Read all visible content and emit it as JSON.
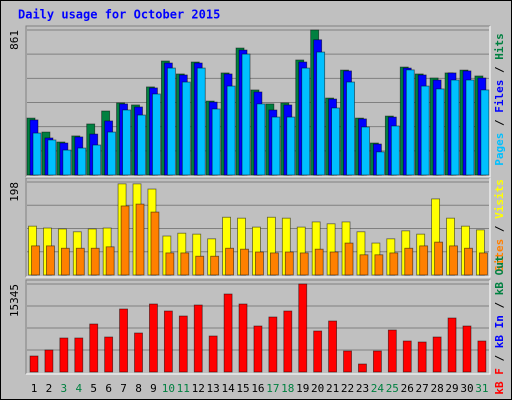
{
  "legend_separator": " / ",
  "chart_data": [
    {
      "type": "bar",
      "title": "Daily usage for October 2015",
      "ylim": [
        0,
        861
      ],
      "yticks": [
        861
      ],
      "grid_steps": 6,
      "series": [
        {
          "name": "Hits",
          "color": "#008040",
          "values": [
            338,
            255,
            196,
            232,
            303,
            380,
            428,
            416,
            523,
            677,
            600,
            671,
            439,
            606,
            754,
            505,
            422,
            428,
            683,
            861,
            457,
            623,
            338,
            190,
            350,
            641,
            600,
            576,
            606,
            623,
            588
          ]
        },
        {
          "name": "Files",
          "color": "#0000ff",
          "values": [
            327,
            220,
            190,
            226,
            243,
            321,
            422,
            404,
            517,
            665,
            594,
            665,
            433,
            600,
            742,
            493,
            386,
            416,
            671,
            803,
            451,
            618,
            333,
            184,
            344,
            635,
            594,
            564,
            606,
            618,
            576
          ]
        },
        {
          "name": "Pages",
          "color": "#00c0ff",
          "values": [
            249,
            208,
            148,
            160,
            178,
            255,
            386,
            356,
            481,
            635,
            552,
            635,
            392,
            528,
            718,
            422,
            344,
            344,
            635,
            730,
            398,
            552,
            285,
            137,
            291,
            624,
            528,
            511,
            564,
            564,
            505
          ]
        }
      ]
    },
    {
      "type": "bar",
      "ylim": [
        0,
        198
      ],
      "yticks": [
        198
      ],
      "grid_steps": 4,
      "series": [
        {
          "name": "Visits",
          "color": "#ffff00",
          "values": [
            104,
            100,
            98,
            92,
            98,
            100,
            194,
            194,
            183,
            83,
            89,
            87,
            77,
            123,
            121,
            102,
            123,
            121,
            102,
            113,
            109,
            113,
            92,
            68,
            77,
            94,
            87,
            162,
            121,
            104,
            96
          ]
        },
        {
          "name": "Sites",
          "color": "#ff8000",
          "values": [
            62,
            62,
            57,
            57,
            57,
            60,
            147,
            151,
            134,
            47,
            47,
            40,
            40,
            57,
            55,
            49,
            47,
            49,
            47,
            55,
            49,
            68,
            43,
            43,
            47,
            57,
            62,
            70,
            62,
            57,
            47
          ]
        }
      ]
    },
    {
      "type": "bar",
      "ylim": [
        0,
        15345
      ],
      "yticks": [
        15345
      ],
      "grid_steps": 4,
      "categories": [
        "1",
        "2",
        "3",
        "4",
        "5",
        "6",
        "7",
        "8",
        "9",
        "10",
        "11",
        "12",
        "13",
        "14",
        "15",
        "16",
        "17",
        "18",
        "19",
        "20",
        "21",
        "22",
        "23",
        "24",
        "25",
        "26",
        "27",
        "28",
        "29",
        "30",
        "31"
      ],
      "category_colors": [
        "#000000",
        "#000000",
        "#008040",
        "#008040",
        "#000000",
        "#000000",
        "#000000",
        "#000000",
        "#000000",
        "#008040",
        "#008040",
        "#000000",
        "#000000",
        "#000000",
        "#000000",
        "#000000",
        "#008040",
        "#008040",
        "#000000",
        "#000000",
        "#000000",
        "#000000",
        "#000000",
        "#008040",
        "#008040",
        "#000000",
        "#000000",
        "#000000",
        "#000000",
        "#000000",
        "#008040"
      ],
      "series": [
        {
          "name": "kB F",
          "color": "#ff0000",
          "values": [
            2790,
            3836,
            5929,
            5929,
            8370,
            6103,
            10986,
            6801,
            11858,
            10637,
            9765,
            11683,
            6278,
            13601,
            11858,
            8021,
            9591,
            10637,
            15345,
            7149,
            8893,
            3662,
            1395,
            3662,
            7324,
            5406,
            5231,
            6103,
            9416,
            8021,
            5406
          ]
        }
      ],
      "legend_extra": [
        {
          "name": "kB In",
          "color": "#0000ff"
        },
        {
          "name": "kB Out",
          "color": "#008040"
        }
      ]
    }
  ]
}
